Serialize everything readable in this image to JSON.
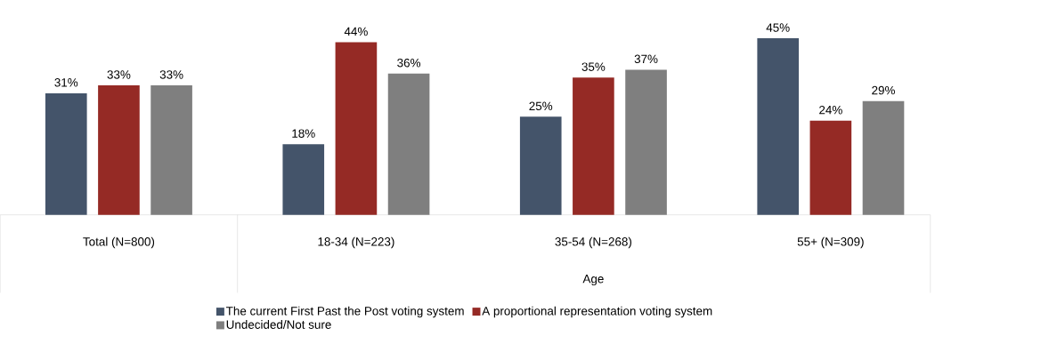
{
  "chart_data": {
    "type": "bar",
    "categories": [
      "Total (N=800)",
      "18-34 (N=223)",
      "35-54 (N=268)",
      "55+ (N=309)"
    ],
    "series": [
      {
        "name": "The current First Past the Post voting system",
        "color": "#44546a",
        "values": [
          31,
          18,
          25,
          45
        ],
        "value_labels": [
          "31%",
          "18%",
          "25%",
          "45%"
        ]
      },
      {
        "name": "A proportional representation voting system",
        "color": "#952a25",
        "values": [
          33,
          44,
          35,
          24
        ],
        "value_labels": [
          "33%",
          "44%",
          "35%",
          "24%"
        ]
      },
      {
        "name": "Undecided/Not sure",
        "color": "#7f7f7f",
        "values": [
          33,
          36,
          37,
          29
        ],
        "value_labels": [
          "33%",
          "36%",
          "37%",
          "29%"
        ]
      }
    ],
    "annotations": [
      "Age"
    ],
    "legend": "bottom"
  }
}
